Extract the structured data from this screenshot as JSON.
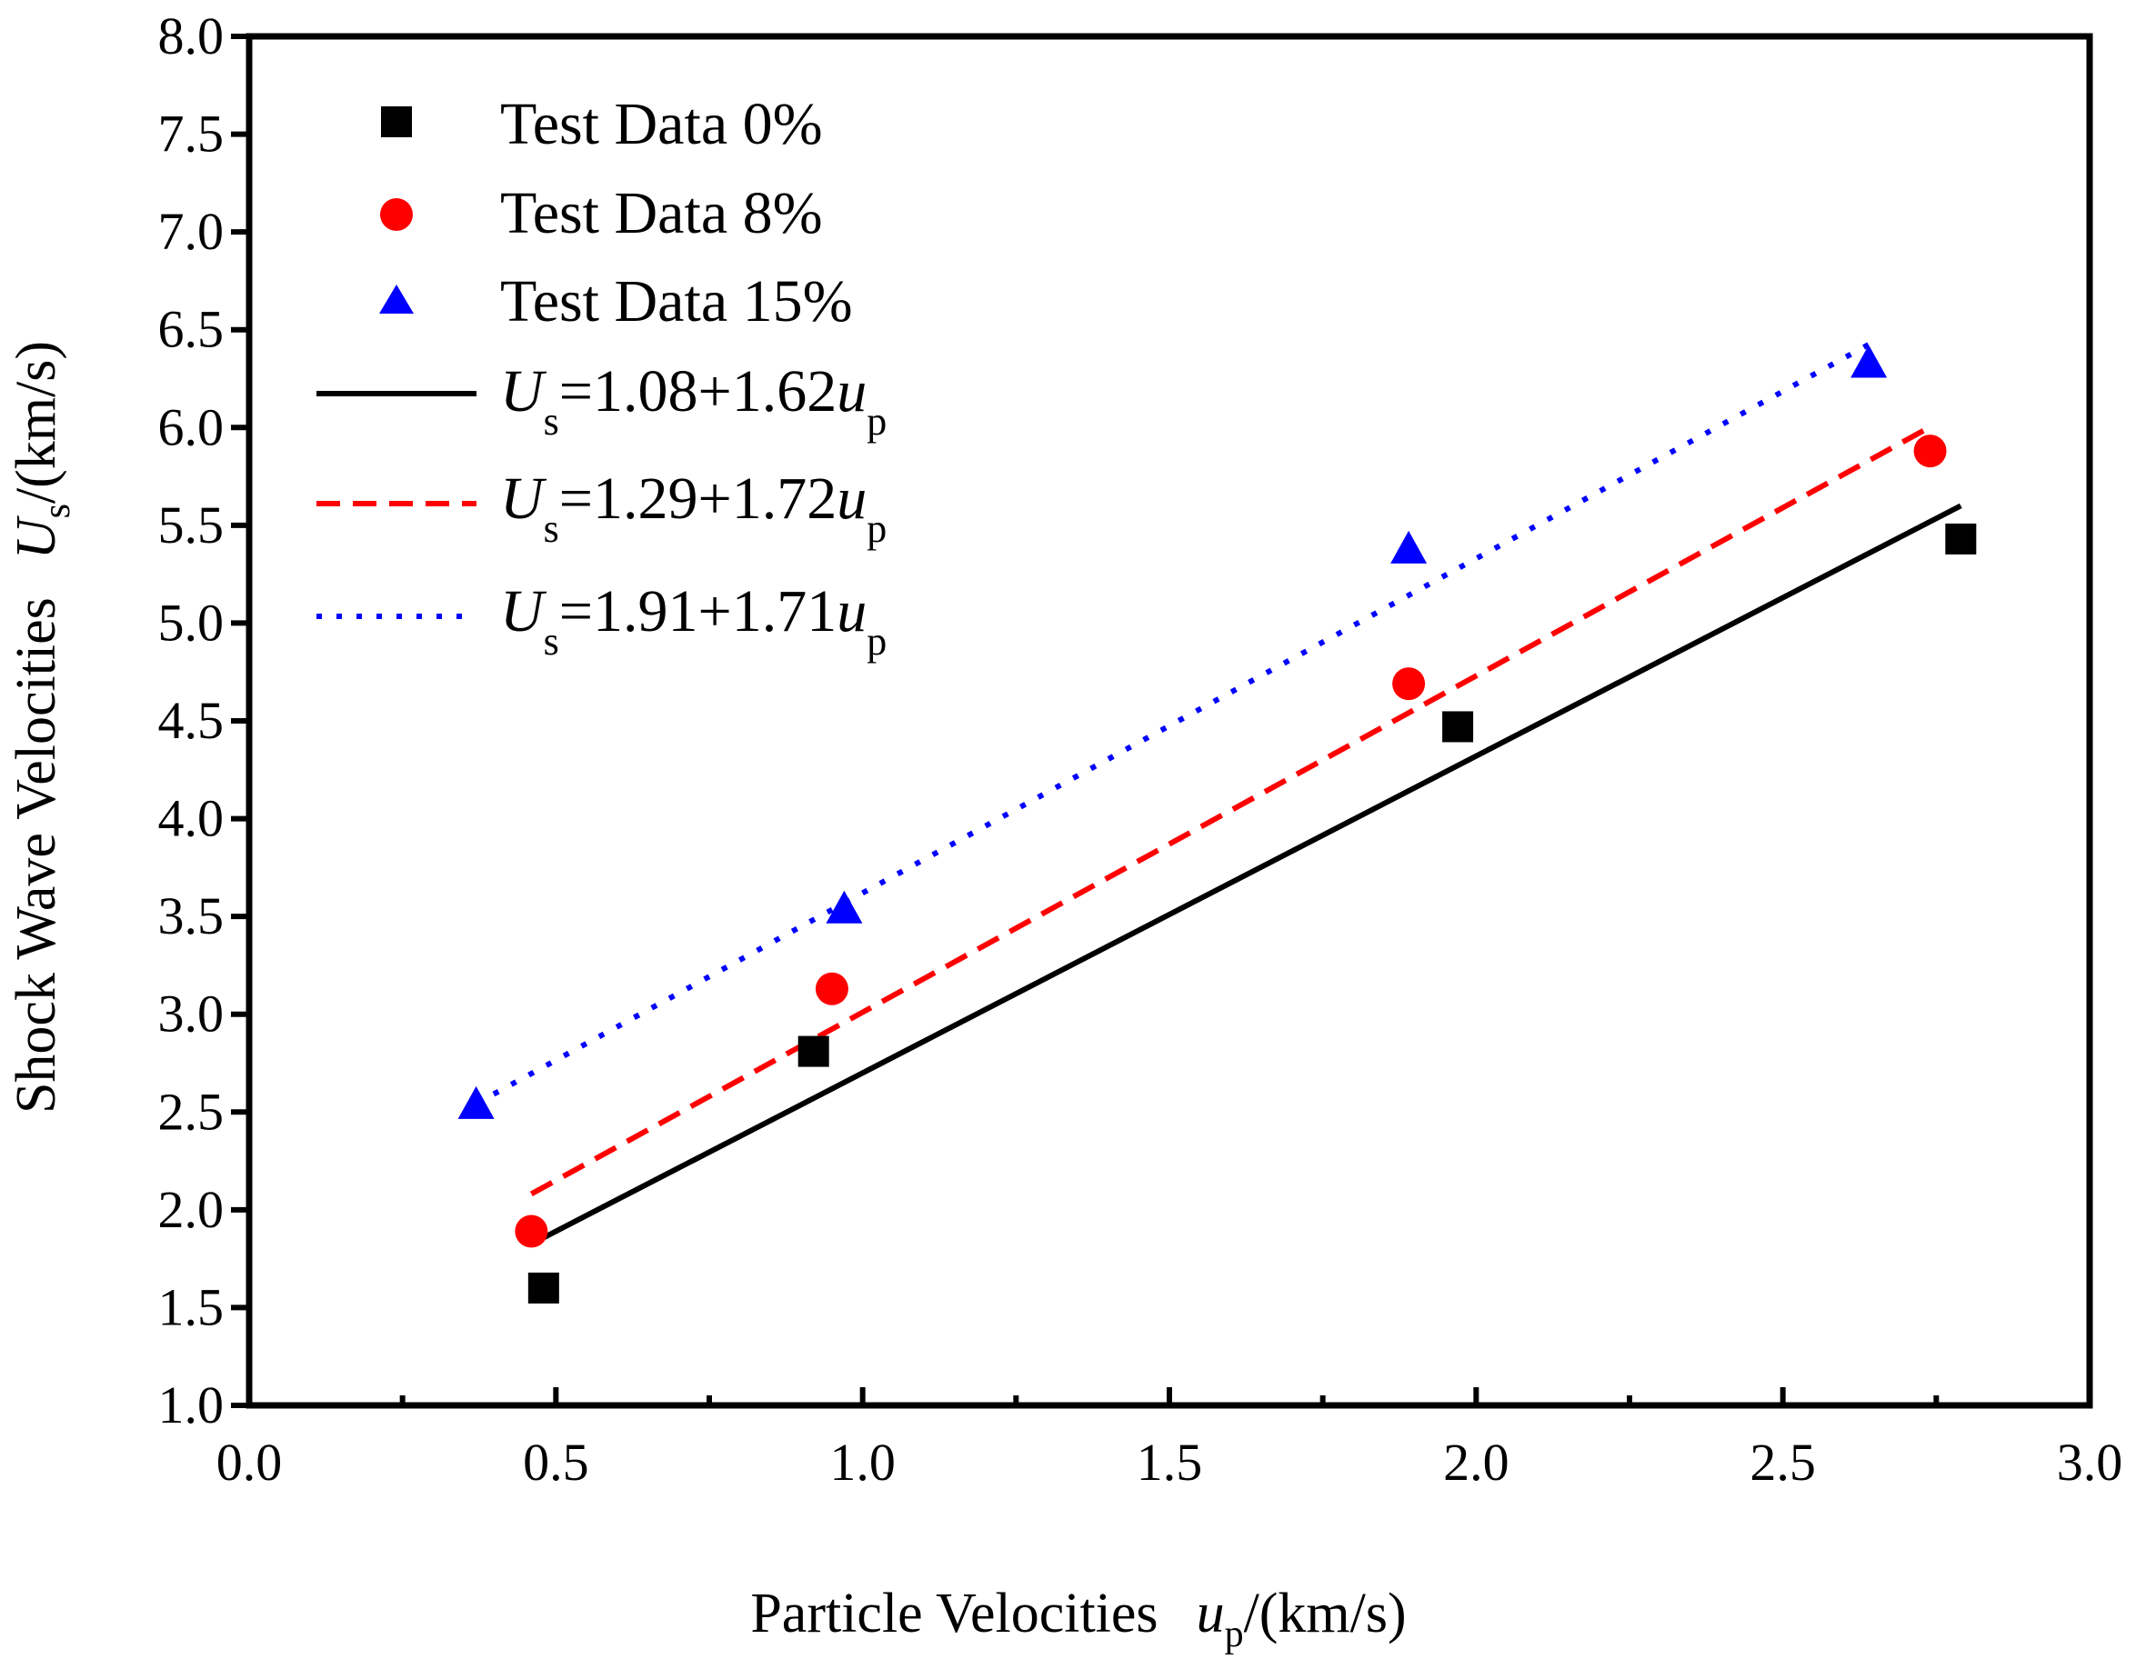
{
  "chart_data": {
    "type": "scatter",
    "xlabel": {
      "main": "Particle Velocities",
      "sym": "u",
      "sub": "p",
      "unit": "/(km/s)"
    },
    "ylabel": {
      "main": "Shock Wave Velocities",
      "sym": "U",
      "sub": "s",
      "unit": "/(km/s)"
    },
    "xlim": [
      0.0,
      3.0
    ],
    "ylim": [
      1.0,
      8.0
    ],
    "x_ticks": [
      "0.0",
      "0.5",
      "1.0",
      "1.5",
      "2.0",
      "2.5",
      "3.0"
    ],
    "y_ticks": [
      "1.0",
      "1.5",
      "2.0",
      "2.5",
      "3.0",
      "3.5",
      "4.0",
      "4.5",
      "5.0",
      "5.5",
      "6.0",
      "6.5",
      "7.0",
      "7.5",
      "8.0"
    ],
    "grid": false,
    "legend_position": "top-left",
    "series": [
      {
        "name": "Test Data 0%",
        "marker": "square",
        "color": "#000000",
        "x": [
          0.48,
          0.92,
          1.97,
          2.79
        ],
        "y": [
          1.6,
          2.81,
          4.47,
          5.43
        ]
      },
      {
        "name": "Test Data 8%",
        "marker": "circle",
        "color": "#ff0000",
        "x": [
          0.46,
          0.95,
          1.89,
          2.74
        ],
        "y": [
          1.89,
          3.13,
          4.69,
          5.88
        ]
      },
      {
        "name": "Test Data 15%",
        "marker": "triangle",
        "color": "#0000ff",
        "x": [
          0.37,
          0.97,
          1.89,
          2.64
        ],
        "y": [
          2.53,
          3.53,
          5.37,
          6.32
        ]
      }
    ],
    "fits": [
      {
        "label_sym": "U",
        "label_sub": "s",
        "label_eq": "=1.08+1.62",
        "label_var": "u",
        "label_var_sub": "p",
        "intercept": 1.08,
        "slope": 1.62,
        "x_range": [
          0.48,
          2.79
        ],
        "color": "#000000",
        "style": "solid"
      },
      {
        "label_sym": "U",
        "label_sub": "s",
        "label_eq": "=1.29+1.72",
        "label_var": "u",
        "label_var_sub": "p",
        "intercept": 1.29,
        "slope": 1.72,
        "x_range": [
          0.46,
          2.74
        ],
        "color": "#ff0000",
        "style": "dashed"
      },
      {
        "label_sym": "U",
        "label_sub": "s",
        "label_eq": "=1.91+1.71",
        "label_var": "u",
        "label_var_sub": "p",
        "intercept": 1.91,
        "slope": 1.71,
        "x_range": [
          0.37,
          2.64
        ],
        "color": "#0000ff",
        "style": "dotted"
      }
    ]
  }
}
